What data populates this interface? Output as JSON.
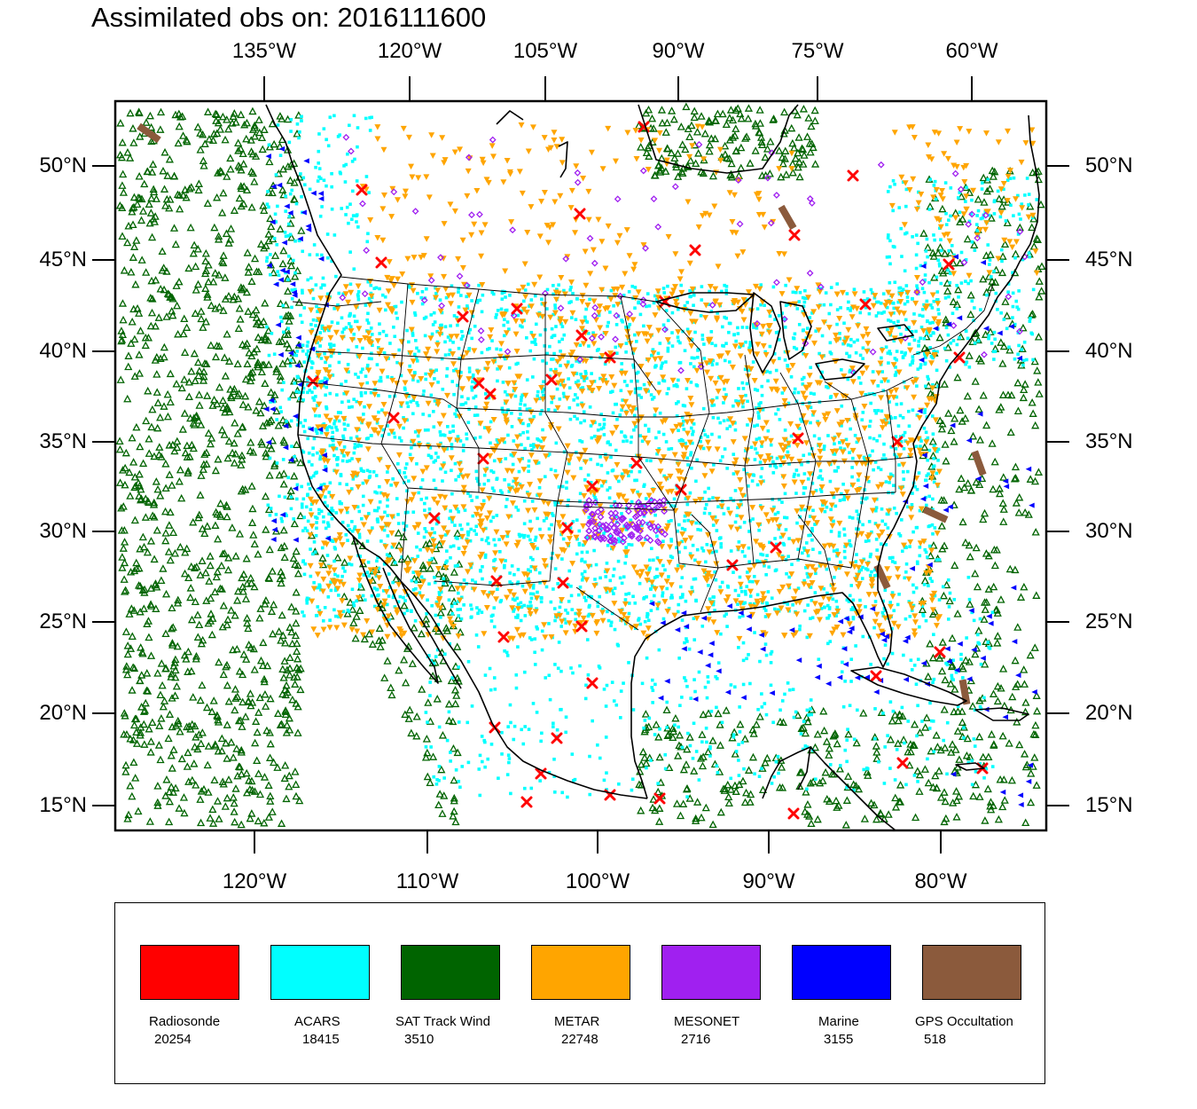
{
  "title": "Assimilated obs on: 2016111600",
  "axes": {
    "top_lon_labels": [
      "135°W",
      "120°W",
      "105°W",
      "90°W",
      "75°W",
      "60°W"
    ],
    "bottom_lon_labels": [
      "120°W",
      "110°W",
      "100°W",
      "90°W",
      "80°W"
    ],
    "lat_labels": [
      "50°N",
      "45°N",
      "40°N",
      "35°N",
      "30°N",
      "25°N",
      "20°N",
      "15°N"
    ]
  },
  "legend": {
    "items": [
      {
        "label": "Radiosonde",
        "count": "20254",
        "color": "#ff0000"
      },
      {
        "label": "ACARS",
        "count": "18415",
        "color": "#00ffff"
      },
      {
        "label": "SAT Track Wind",
        "count": "3510",
        "color": "#006400"
      },
      {
        "label": "METAR",
        "count": "22748",
        "color": "#ffa500"
      },
      {
        "label": "MESONET",
        "count": "2716",
        "color": "#a020f0"
      },
      {
        "label": "Marine",
        "count": "3155",
        "color": "#0000ff"
      },
      {
        "label": "GPS Occultation",
        "count": "518",
        "color": "#8b5a3c"
      }
    ]
  },
  "colors": {
    "radiosonde": "#ff0000",
    "acars": "#00ffff",
    "sat_track_wind": "#006400",
    "metar": "#ffa500",
    "mesonet": "#a020f0",
    "marine": "#0000ff",
    "gps": "#8b5a3c"
  }
}
